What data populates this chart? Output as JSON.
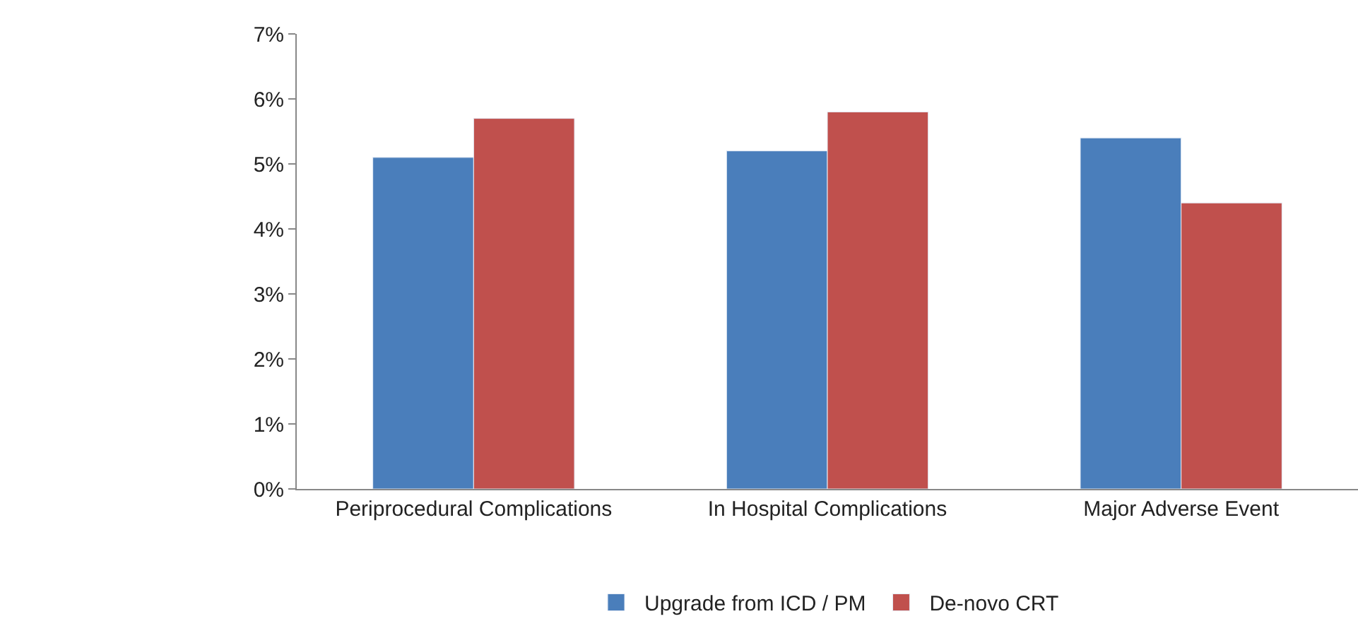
{
  "chart_data": {
    "type": "bar",
    "categories": [
      "Periprocedural Complications",
      "In Hospital Complications",
      "Major Adverse Event"
    ],
    "series": [
      {
        "name": "Upgrade from ICD / PM",
        "color": "#4a7ebb",
        "values": [
          5.1,
          5.2,
          5.4
        ]
      },
      {
        "name": "De-novo CRT",
        "color": "#c0504d",
        "values": [
          5.7,
          5.8,
          4.4
        ]
      }
    ],
    "ylim": [
      0,
      7
    ],
    "yticks": [
      {
        "value": 0,
        "label": "0%"
      },
      {
        "value": 1,
        "label": "1%"
      },
      {
        "value": 2,
        "label": "2%"
      },
      {
        "value": 3,
        "label": "3%"
      },
      {
        "value": 4,
        "label": "4%"
      },
      {
        "value": 5,
        "label": "5%"
      },
      {
        "value": 6,
        "label": "6%"
      },
      {
        "value": 7,
        "label": "7%"
      }
    ],
    "legend": "bottom"
  }
}
